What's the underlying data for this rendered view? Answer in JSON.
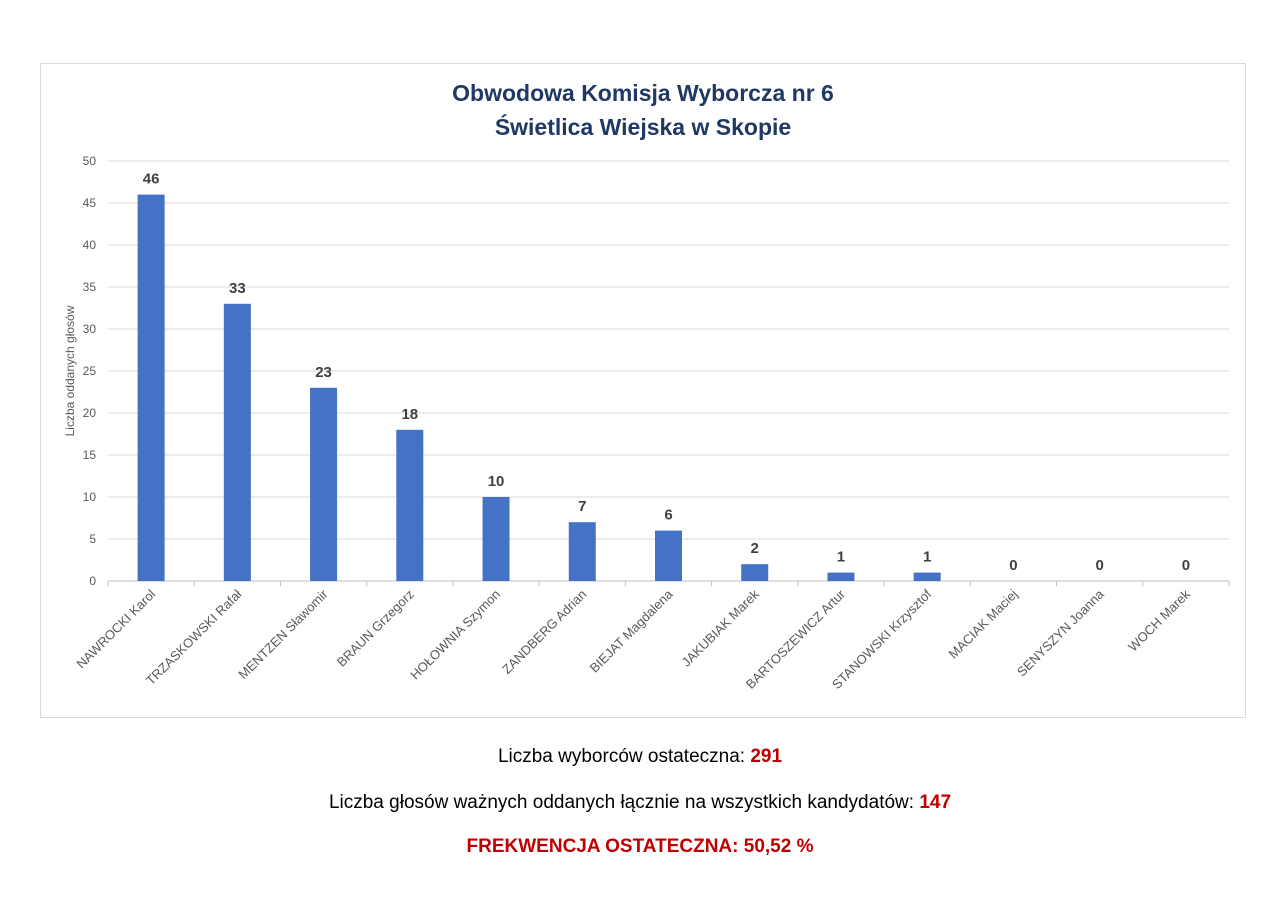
{
  "chart_data": {
    "type": "bar",
    "title": [
      "Obwodowa Komisja Wyborcza nr 6",
      "Świetlica Wiejska w Skopie"
    ],
    "ylabel": "Liczba oddanych głosów",
    "xlabel": "",
    "ylim": [
      0,
      50
    ],
    "yticks": [
      0,
      5,
      10,
      15,
      20,
      25,
      30,
      35,
      40,
      45,
      50
    ],
    "grid": true,
    "legend": "none",
    "bar_color": "#4472c4",
    "title_color": "#1f3864",
    "categories": [
      "NAWROCKI Karol",
      "TRZASKOWSKI Rafał",
      "MENTZEN Sławomir",
      "BRAUN Grzegorz",
      "HOŁOWNIA Szymon",
      "ZANDBERG Adrian",
      "BIEJAT Magdalena",
      "JAKUBIAK Marek",
      "BARTOSZEWICZ Artur",
      "STANOWSKI Krzysztof",
      "MACIAK Maciej",
      "SENYSZYN Joanna",
      "WOCH Marek"
    ],
    "values": [
      46,
      33,
      23,
      18,
      10,
      7,
      6,
      2,
      1,
      1,
      0,
      0,
      0
    ]
  },
  "footer": {
    "voters_label": "Liczba wyborców ostateczna: ",
    "voters_value": "291",
    "valid_label": "Liczba głosów ważnych oddanych łącznie na wszystkich kandydatów: ",
    "valid_value": "147",
    "turnout": "FREKWENCJA OSTATECZNA: 50,52 %"
  }
}
